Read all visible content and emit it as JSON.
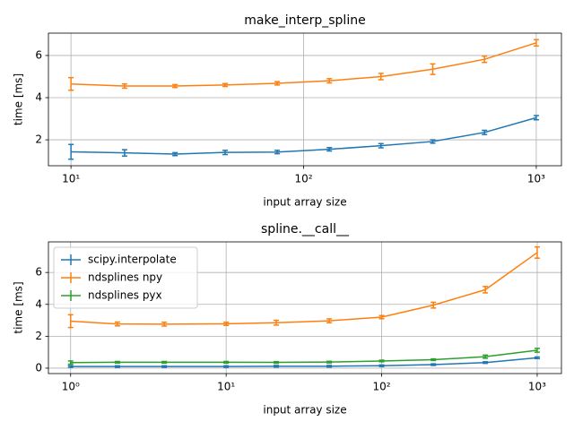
{
  "chart_data": [
    {
      "type": "line",
      "title": "make_interp_spline",
      "x_label": "input array size",
      "y_label": "time [ms]",
      "xscale": "log",
      "grid": true,
      "x": [
        10,
        17,
        28,
        46,
        77,
        129,
        215,
        359,
        599,
        1000
      ],
      "series": [
        {
          "name": "scipy.interpolate",
          "color": "#1f77b4",
          "values": [
            1.43,
            1.38,
            1.32,
            1.4,
            1.42,
            1.55,
            1.72,
            1.92,
            2.35,
            3.05
          ],
          "errors": [
            0.35,
            0.15,
            0.07,
            0.1,
            0.08,
            0.08,
            0.1,
            0.08,
            0.1,
            0.1
          ]
        },
        {
          "name": "ndsplines npy",
          "color": "#ff7f0e",
          "values": [
            4.65,
            4.55,
            4.55,
            4.6,
            4.68,
            4.8,
            5.0,
            5.35,
            5.82,
            6.6
          ],
          "errors": [
            0.3,
            0.1,
            0.07,
            0.07,
            0.08,
            0.1,
            0.15,
            0.25,
            0.15,
            0.15
          ]
        }
      ],
      "xlim": [
        8.0,
        1283
      ],
      "ylim": [
        0.77,
        7.06
      ],
      "xticks": [
        {
          "value": 10,
          "label": "10¹"
        },
        {
          "value": 100,
          "label": "10²"
        },
        {
          "value": 1000,
          "label": "10³"
        }
      ],
      "yticks": [
        2,
        4,
        6
      ],
      "legend": false
    },
    {
      "type": "line",
      "title": "spline.__call__",
      "x_label": "input array size",
      "y_label": "time [ms]",
      "xscale": "log",
      "grid": true,
      "x": [
        1,
        2,
        4,
        10,
        21,
        46,
        100,
        215,
        464,
        1000
      ],
      "series": [
        {
          "name": "scipy.interpolate",
          "color": "#1f77b4",
          "values": [
            0.1,
            0.1,
            0.1,
            0.1,
            0.12,
            0.12,
            0.15,
            0.22,
            0.35,
            0.65
          ],
          "errors": [
            0.05,
            0.05,
            0.05,
            0.05,
            0.05,
            0.05,
            0.05,
            0.05,
            0.05,
            0.05
          ]
        },
        {
          "name": "ndsplines npy",
          "color": "#ff7f0e",
          "values": [
            2.95,
            2.77,
            2.76,
            2.78,
            2.85,
            2.97,
            3.2,
            3.95,
            4.92,
            7.25
          ],
          "errors": [
            0.4,
            0.12,
            0.12,
            0.1,
            0.15,
            0.12,
            0.1,
            0.18,
            0.2,
            0.35
          ]
        },
        {
          "name": "ndsplines pyx",
          "color": "#2ca02c",
          "values": [
            0.35,
            0.37,
            0.37,
            0.37,
            0.36,
            0.38,
            0.45,
            0.53,
            0.72,
            1.12
          ],
          "errors": [
            0.1,
            0.05,
            0.05,
            0.05,
            0.05,
            0.05,
            0.05,
            0.05,
            0.1,
            0.12
          ]
        }
      ],
      "xlim": [
        0.72,
        1432
      ],
      "ylim": [
        -0.34,
        7.92
      ],
      "xticks": [
        {
          "value": 1,
          "label": "10⁰"
        },
        {
          "value": 10,
          "label": "10¹"
        },
        {
          "value": 100,
          "label": "10²"
        },
        {
          "value": 1000,
          "label": "10³"
        }
      ],
      "yticks": [
        0,
        2,
        4,
        6
      ],
      "legend": "upper left"
    }
  ]
}
